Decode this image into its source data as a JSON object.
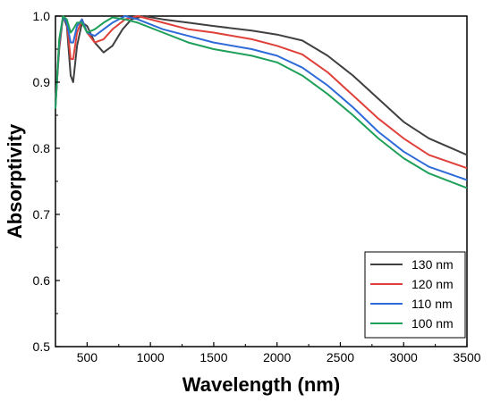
{
  "chart_data": {
    "type": "line",
    "title": "",
    "xlabel": "Wavelength (nm)",
    "ylabel": "Absorptivity",
    "xlim": [
      250,
      3500
    ],
    "ylim": [
      0.5,
      1.0
    ],
    "xticks": [
      500,
      1000,
      1500,
      2000,
      2500,
      3000,
      3500
    ],
    "xtick_labels": [
      "500",
      "1000",
      "1500",
      "2000",
      "2500",
      "3000",
      "3500"
    ],
    "yticks": [
      0.5,
      0.6,
      0.7,
      0.8,
      0.9,
      1.0
    ],
    "ytick_labels": [
      "0.5",
      "0.6",
      "0.7",
      "0.8",
      "0.9",
      "1.0"
    ],
    "grid": false,
    "legend_position": "bottom-right",
    "series": [
      {
        "name": "130 nm",
        "color": "#404040",
        "points": [
          [
            250,
            0.87
          ],
          [
            280,
            0.95
          ],
          [
            310,
            1.0
          ],
          [
            340,
            0.985
          ],
          [
            370,
            0.91
          ],
          [
            390,
            0.9
          ],
          [
            420,
            0.955
          ],
          [
            460,
            0.99
          ],
          [
            500,
            0.985
          ],
          [
            560,
            0.96
          ],
          [
            630,
            0.945
          ],
          [
            700,
            0.955
          ],
          [
            780,
            0.98
          ],
          [
            850,
            0.995
          ],
          [
            950,
            1.0
          ],
          [
            1100,
            0.995
          ],
          [
            1300,
            0.99
          ],
          [
            1500,
            0.985
          ],
          [
            1800,
            0.978
          ],
          [
            2000,
            0.972
          ],
          [
            2200,
            0.963
          ],
          [
            2400,
            0.94
          ],
          [
            2600,
            0.91
          ],
          [
            2800,
            0.875
          ],
          [
            3000,
            0.84
          ],
          [
            3200,
            0.815
          ],
          [
            3500,
            0.79
          ]
        ]
      },
      {
        "name": "120 nm",
        "color": "#e0403a",
        "points": [
          [
            250,
            0.865
          ],
          [
            280,
            0.955
          ],
          [
            310,
            1.0
          ],
          [
            340,
            0.99
          ],
          [
            370,
            0.935
          ],
          [
            390,
            0.935
          ],
          [
            420,
            0.975
          ],
          [
            460,
            0.995
          ],
          [
            500,
            0.975
          ],
          [
            560,
            0.96
          ],
          [
            630,
            0.965
          ],
          [
            700,
            0.98
          ],
          [
            800,
            0.995
          ],
          [
            900,
            1.0
          ],
          [
            1100,
            0.99
          ],
          [
            1300,
            0.98
          ],
          [
            1500,
            0.975
          ],
          [
            1800,
            0.965
          ],
          [
            2000,
            0.955
          ],
          [
            2200,
            0.942
          ],
          [
            2400,
            0.915
          ],
          [
            2600,
            0.88
          ],
          [
            2800,
            0.845
          ],
          [
            3000,
            0.815
          ],
          [
            3200,
            0.79
          ],
          [
            3500,
            0.77
          ]
        ]
      },
      {
        "name": "110 nm",
        "color": "#2f6bd8",
        "points": [
          [
            250,
            0.862
          ],
          [
            280,
            0.96
          ],
          [
            310,
            1.0
          ],
          [
            340,
            0.99
          ],
          [
            370,
            0.96
          ],
          [
            390,
            0.96
          ],
          [
            420,
            0.985
          ],
          [
            460,
            0.995
          ],
          [
            500,
            0.975
          ],
          [
            560,
            0.97
          ],
          [
            630,
            0.98
          ],
          [
            700,
            0.99
          ],
          [
            800,
            1.0
          ],
          [
            900,
            0.995
          ],
          [
            1100,
            0.98
          ],
          [
            1300,
            0.97
          ],
          [
            1500,
            0.96
          ],
          [
            1800,
            0.95
          ],
          [
            2000,
            0.94
          ],
          [
            2200,
            0.922
          ],
          [
            2400,
            0.895
          ],
          [
            2600,
            0.862
          ],
          [
            2800,
            0.825
          ],
          [
            3000,
            0.795
          ],
          [
            3200,
            0.772
          ],
          [
            3500,
            0.752
          ]
        ]
      },
      {
        "name": "100 nm",
        "color": "#1fa05a",
        "points": [
          [
            250,
            0.86
          ],
          [
            280,
            0.965
          ],
          [
            310,
            1.0
          ],
          [
            340,
            0.995
          ],
          [
            370,
            0.975
          ],
          [
            390,
            0.98
          ],
          [
            420,
            0.99
          ],
          [
            460,
            0.99
          ],
          [
            500,
            0.975
          ],
          [
            560,
            0.98
          ],
          [
            630,
            0.99
          ],
          [
            700,
            0.998
          ],
          [
            800,
            0.995
          ],
          [
            900,
            0.99
          ],
          [
            1100,
            0.975
          ],
          [
            1300,
            0.96
          ],
          [
            1500,
            0.95
          ],
          [
            1800,
            0.94
          ],
          [
            2000,
            0.93
          ],
          [
            2200,
            0.91
          ],
          [
            2400,
            0.882
          ],
          [
            2600,
            0.85
          ],
          [
            2800,
            0.815
          ],
          [
            3000,
            0.785
          ],
          [
            3200,
            0.762
          ],
          [
            3500,
            0.74
          ]
        ]
      }
    ]
  }
}
